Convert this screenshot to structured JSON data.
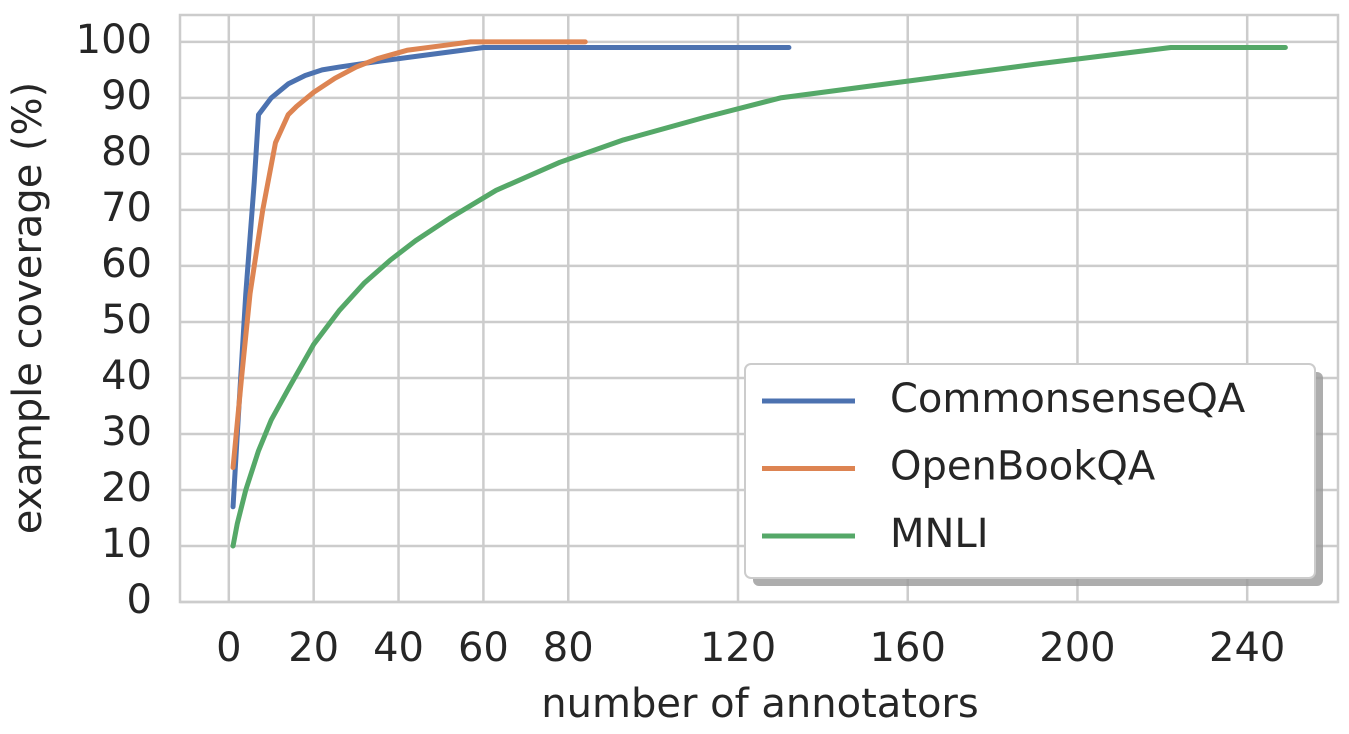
{
  "chart_data": {
    "type": "line",
    "x_label": "number of annotators",
    "y_label": "example coverage (%)",
    "xlim": [
      -11.5,
      261.4
    ],
    "ylim": [
      0,
      104.8
    ],
    "xticks": [
      0,
      20,
      40,
      60,
      80,
      120,
      160,
      200,
      240
    ],
    "yticks": [
      0,
      10,
      20,
      30,
      40,
      50,
      60,
      70,
      80,
      90,
      100
    ],
    "grid": true,
    "legend": "lower right",
    "series": [
      {
        "name": "CommonsenseQA",
        "color": "#4c72b0",
        "x": [
          1,
          2,
          4,
          6,
          7,
          8,
          10,
          14,
          18,
          22,
          26,
          35,
          45,
          60,
          80,
          100,
          132
        ],
        "values": [
          17,
          30,
          55,
          75,
          87,
          88,
          90,
          92.5,
          94,
          95,
          95.5,
          96.5,
          97.5,
          99,
          99,
          99,
          99
        ]
      },
      {
        "name": "OpenBookQA",
        "color": "#dd8452",
        "x": [
          1,
          3,
          5,
          8,
          11,
          14,
          16,
          20,
          25,
          30,
          35,
          42,
          50,
          57,
          70,
          84
        ],
        "values": [
          24,
          40,
          55,
          70,
          82,
          87,
          88.5,
          91,
          93.5,
          95.5,
          97,
          98.5,
          99.3,
          100,
          100,
          100
        ]
      },
      {
        "name": "MNLI",
        "color": "#55a868",
        "x": [
          1,
          2,
          4,
          7,
          10,
          14,
          20,
          26,
          32,
          38,
          44,
          52,
          63,
          78,
          93,
          112,
          130,
          160,
          190,
          222,
          249
        ],
        "values": [
          10,
          14,
          20,
          27,
          32.5,
          38,
          46,
          52,
          57,
          61,
          64.5,
          68.5,
          73.5,
          78.5,
          82.5,
          86.5,
          90,
          93,
          96,
          99,
          99
        ]
      }
    ]
  }
}
